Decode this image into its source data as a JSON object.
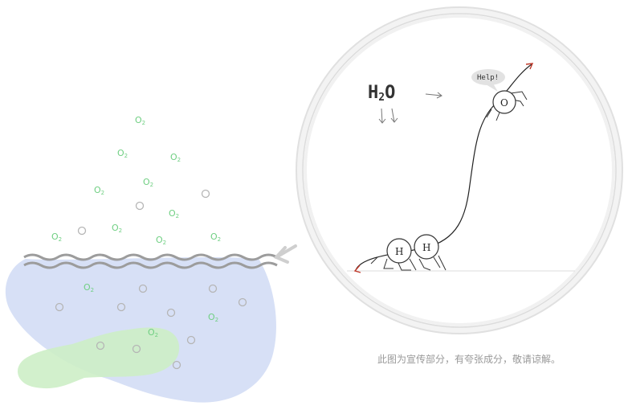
{
  "left_scene": {
    "o2_label": "O",
    "o2_subscript": "2",
    "o2_count": 13
  },
  "zoom_circle": {
    "formula_main": "H",
    "formula_subscript": "2",
    "formula_tail": "O",
    "oxygen_atom_label": "O",
    "hydrogen_atom_label": "H",
    "speech_bubble": "Help!"
  },
  "caption": "此图为宣传部分，有夸张成分，敬请谅解。",
  "colors": {
    "water": "#d7e0f6",
    "green_patch": "#cdeec7",
    "o2_text": "#6fcf82",
    "wave": "#9c9c9c",
    "bubble_stroke": "#b5b5b5",
    "circle_ring": "#e3e3e3",
    "arrow_red": "#c0392b"
  }
}
